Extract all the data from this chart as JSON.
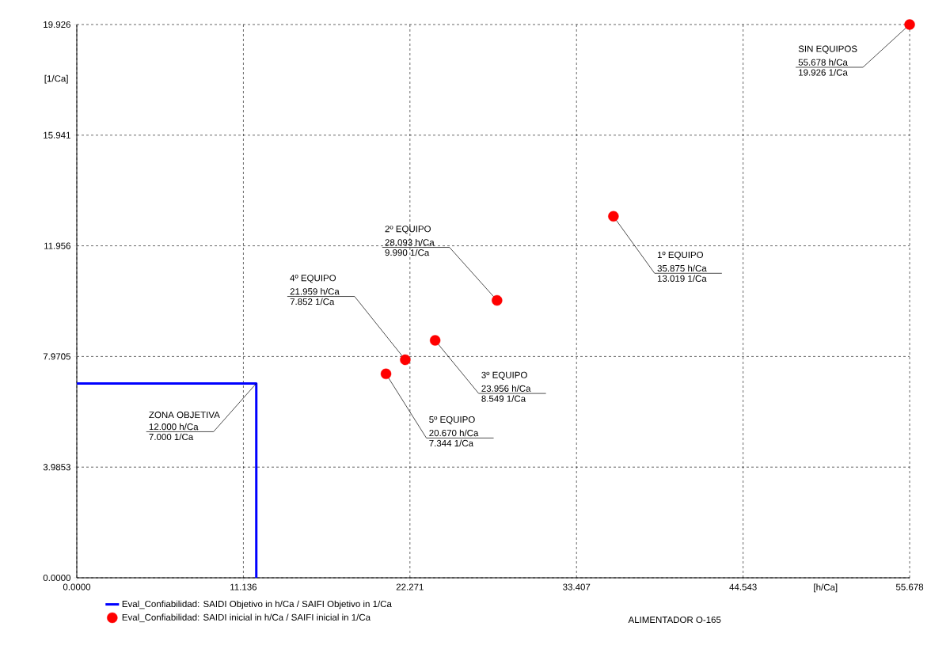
{
  "chart_data": {
    "type": "scatter",
    "xlabel": "[h/Ca]",
    "ylabel": "[1/Ca]",
    "xlim": [
      0,
      55.678
    ],
    "ylim": [
      0,
      19.926
    ],
    "xticks": [
      {
        "value": 0,
        "label": "0.0000"
      },
      11.136,
      22.271,
      33.407,
      44.543,
      55.678
    ],
    "yticks": [
      {
        "value": 0,
        "label": "0.0000"
      },
      3.9853,
      7.9705,
      11.956,
      15.941,
      19.926
    ],
    "grid": true,
    "legend": "bottom",
    "series": [
      {
        "name": "Eval_Confiabilidad: SAIDI Objetivo in h/Ca / SAIFI Objetivo in 1/Ca",
        "type": "line",
        "color": "#0000ff",
        "marker": "none",
        "line_style": "solid",
        "x": [
          0,
          12,
          12
        ],
        "values": [
          7,
          7,
          0
        ]
      },
      {
        "name": "Eval_Confiabilidad: SAIDI inicial in h/Ca / SAIFI inicial in 1/Ca",
        "color": "#ff0000",
        "marker": "circle",
        "x": [
          55.678,
          35.875,
          28.093,
          23.956,
          21.959,
          20.67
        ],
        "values": [
          19.926,
          13.019,
          9.99,
          8.549,
          7.852,
          7.344
        ]
      }
    ],
    "annotations": [
      "SIN EQUIPOS",
      {
        "text": "55.678 h/Ca",
        "x": 55.678,
        "y": 19.926
      },
      {
        "text": "19.926 1/Ca",
        "x": 55.678,
        "y": 19.926
      },
      "1º EQUIPO",
      {
        "text": "35.875 h/Ca",
        "x": 35.875,
        "y": 13.019
      },
      {
        "text": "13.019 1/Ca",
        "x": 35.875,
        "y": 13.019
      },
      "2º EQUIPO",
      {
        "text": "28.093 h/Ca",
        "x": 28.093,
        "y": 9.99
      },
      {
        "text": "9.990 1/Ca",
        "x": 28.093,
        "y": 9.99
      },
      "3º EQUIPO",
      {
        "text": "23.956 h/Ca",
        "x": 23.956,
        "y": 8.549
      },
      {
        "text": "8.549 1/Ca",
        "x": 23.956,
        "y": 8.549
      },
      "4º EQUIPO",
      {
        "text": "21.959 h/Ca",
        "x": 21.959,
        "y": 7.852
      },
      {
        "text": "7.852 1/Ca",
        "x": 21.959,
        "y": 7.852
      },
      "5º EQUIPO",
      {
        "text": "20.670 h/Ca",
        "x": 20.67,
        "y": 7.344
      },
      {
        "text": "7.344 1/Ca",
        "x": 20.67,
        "y": 7.344
      },
      "ZONA OBJETIVA",
      {
        "text": "12.000 h/Ca",
        "x": 12,
        "y": 7
      },
      {
        "text": "7.000 1/Ca",
        "x": 12,
        "y": 7
      },
      "ALIMENTADOR O-165"
    ]
  }
}
